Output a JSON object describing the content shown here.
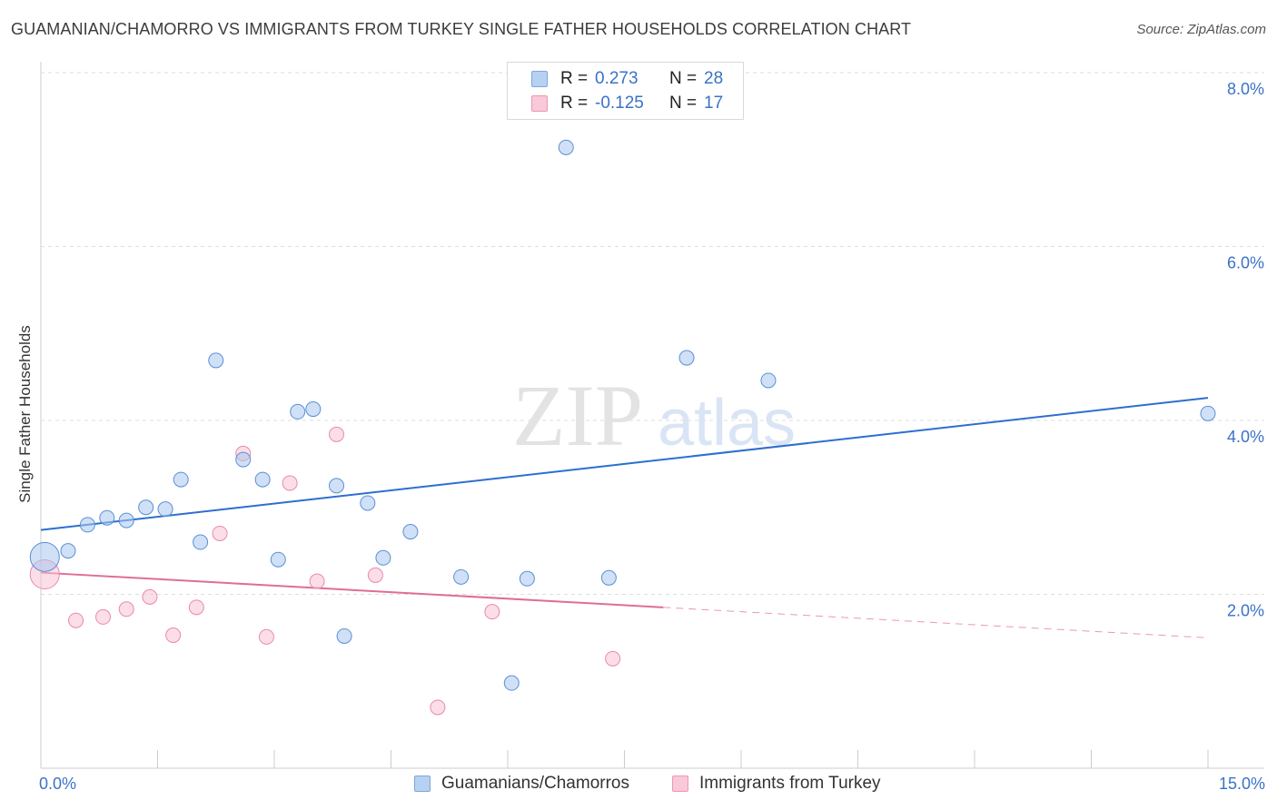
{
  "title": "GUAMANIAN/CHAMORRO VS IMMIGRANTS FROM TURKEY SINGLE FATHER HOUSEHOLDS CORRELATION CHART",
  "source": "Source: ZipAtlas.com",
  "watermark": {
    "zip": "ZIP",
    "atlas": "atlas"
  },
  "legend_top": [
    {
      "r_label": "R =",
      "r_value": "0.273",
      "n_label": "N =",
      "n_value": "28"
    },
    {
      "r_label": "R =",
      "r_value": "-0.125",
      "n_label": "N =",
      "n_value": "17"
    }
  ],
  "chart_data": {
    "type": "scatter",
    "title": "GUAMANIAN/CHAMORRO VS IMMIGRANTS FROM TURKEY SINGLE FATHER HOUSEHOLDS CORRELATION CHART",
    "xlabel": "",
    "ylabel": "Single Father Households",
    "xlim": [
      0,
      15
    ],
    "ylim": [
      0,
      8
    ],
    "x_tick_labels": [
      {
        "value": 0,
        "label": "0.0%"
      },
      {
        "value": 15,
        "label": "15.0%"
      }
    ],
    "y_tick_labels": [
      {
        "value": 2,
        "label": "2.0%"
      },
      {
        "value": 4,
        "label": "4.0%"
      },
      {
        "value": 6,
        "label": "6.0%"
      },
      {
        "value": 8,
        "label": "8.0%"
      }
    ],
    "grid": true,
    "legend_position": "bottom",
    "series": [
      {
        "name": "Guamanians/Chamorros",
        "color": "#a9c7ee",
        "stroke": "#5b8fd6",
        "trend_color": "#2d6fcf",
        "trend": {
          "x0": 0,
          "y0": 2.74,
          "x1": 15,
          "y1": 4.26,
          "solid_until": 15
        },
        "points": [
          {
            "x": 0.05,
            "y": 2.43,
            "big": true
          },
          {
            "x": 0.35,
            "y": 2.5
          },
          {
            "x": 0.6,
            "y": 2.8
          },
          {
            "x": 0.85,
            "y": 2.88
          },
          {
            "x": 1.1,
            "y": 2.85
          },
          {
            "x": 1.35,
            "y": 3.0
          },
          {
            "x": 1.6,
            "y": 2.98
          },
          {
            "x": 1.8,
            "y": 3.32
          },
          {
            "x": 2.05,
            "y": 2.6
          },
          {
            "x": 2.25,
            "y": 4.69
          },
          {
            "x": 2.6,
            "y": 3.55
          },
          {
            "x": 2.85,
            "y": 3.32
          },
          {
            "x": 3.05,
            "y": 2.4
          },
          {
            "x": 3.3,
            "y": 4.1
          },
          {
            "x": 3.5,
            "y": 4.13
          },
          {
            "x": 3.8,
            "y": 3.25
          },
          {
            "x": 3.9,
            "y": 1.52
          },
          {
            "x": 4.2,
            "y": 3.05
          },
          {
            "x": 4.4,
            "y": 2.42
          },
          {
            "x": 4.75,
            "y": 2.72
          },
          {
            "x": 5.4,
            "y": 2.2
          },
          {
            "x": 6.05,
            "y": 0.98
          },
          {
            "x": 6.25,
            "y": 2.18
          },
          {
            "x": 6.75,
            "y": 7.14
          },
          {
            "x": 7.3,
            "y": 2.19
          },
          {
            "x": 8.3,
            "y": 4.72
          },
          {
            "x": 9.35,
            "y": 4.46
          },
          {
            "x": 15.0,
            "y": 4.08
          }
        ]
      },
      {
        "name": "Immigrants from Turkey",
        "color": "#f7c3d3",
        "stroke": "#e98aa8",
        "trend_color": "#e06d95",
        "trend": {
          "x0": 0,
          "y0": 2.25,
          "x1": 15,
          "y1": 1.5,
          "solid_until": 8.0
        },
        "points": [
          {
            "x": 0.05,
            "y": 2.23,
            "big": true
          },
          {
            "x": 0.45,
            "y": 1.7
          },
          {
            "x": 0.8,
            "y": 1.74
          },
          {
            "x": 1.1,
            "y": 1.83
          },
          {
            "x": 1.4,
            "y": 1.97
          },
          {
            "x": 1.7,
            "y": 1.53
          },
          {
            "x": 2.0,
            "y": 1.85
          },
          {
            "x": 2.3,
            "y": 2.7
          },
          {
            "x": 2.6,
            "y": 3.62
          },
          {
            "x": 2.9,
            "y": 1.51
          },
          {
            "x": 3.2,
            "y": 3.28
          },
          {
            "x": 3.55,
            "y": 2.15
          },
          {
            "x": 3.8,
            "y": 3.84
          },
          {
            "x": 4.3,
            "y": 2.22
          },
          {
            "x": 5.1,
            "y": 0.7
          },
          {
            "x": 5.8,
            "y": 1.8
          },
          {
            "x": 7.35,
            "y": 1.26
          }
        ]
      }
    ]
  }
}
